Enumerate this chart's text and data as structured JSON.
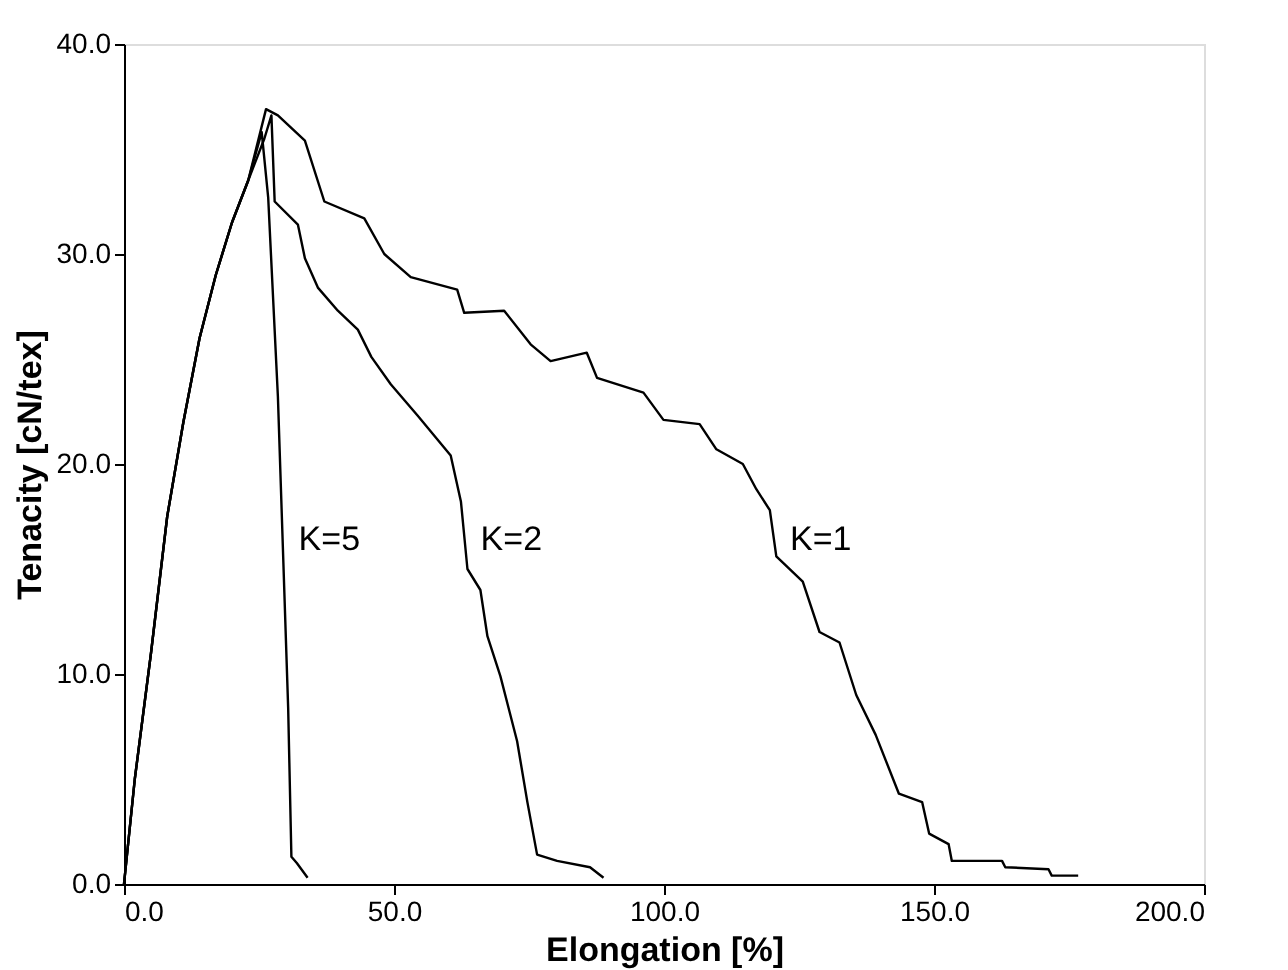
{
  "chart_data": {
    "type": "line",
    "xlabel": "Elongation [%]",
    "ylabel": "Tenacity [cN/tex]",
    "xlim": [
      0,
      200
    ],
    "xticks": [
      {
        "value": 0,
        "label": "0.0"
      },
      {
        "value": 50,
        "label": "50.0"
      },
      {
        "value": 100,
        "label": "100.0"
      },
      {
        "value": 150,
        "label": "150.0"
      },
      {
        "value": 200,
        "label": "200.0"
      }
    ],
    "ylim": [
      0,
      40
    ],
    "yticks": [
      {
        "value": 0,
        "label": "0.0"
      },
      {
        "value": 10,
        "label": "10.0"
      },
      {
        "value": 20,
        "label": "20.0"
      },
      {
        "value": 30,
        "label": "30.0"
      },
      {
        "value": 40,
        "label": "40.0"
      }
    ],
    "grid": false,
    "legend": false,
    "marker": "none",
    "line_style": "solid",
    "series": [
      {
        "name": "K=5",
        "color": "#000000",
        "x": [
          0,
          2,
          5,
          8,
          11,
          14,
          17,
          20,
          23,
          25.5,
          26.7,
          28.5,
          30.4,
          31,
          32,
          34
        ],
        "values": [
          0,
          5,
          11,
          17.5,
          22,
          26,
          29,
          31.5,
          33.5,
          35.8,
          32.7,
          23.2,
          8.4,
          1.3,
          1,
          0.3
        ]
      },
      {
        "name": "K=2",
        "color": "#000000",
        "x": [
          0,
          2,
          5,
          8,
          11,
          14,
          17,
          20,
          23,
          26,
          27.3,
          27.9,
          32.2,
          33.5,
          35.9,
          39.6,
          43.3,
          45.8,
          49.4,
          54.4,
          60.5,
          62.4,
          63.6,
          66,
          67.3,
          69.7,
          72.8,
          74.7,
          76.5,
          80.2,
          86.3,
          88.8
        ],
        "values": [
          0,
          5,
          11,
          17.5,
          22,
          26,
          29,
          31.5,
          33.5,
          35.5,
          36.6,
          32.5,
          31.4,
          29.8,
          28.4,
          27.3,
          26.4,
          25.1,
          23.8,
          22.3,
          20.4,
          18.2,
          15,
          14,
          11.8,
          9.9,
          6.8,
          3.9,
          1.4,
          1.1,
          0.8,
          0.3
        ]
      },
      {
        "name": "K=1",
        "color": "#000000",
        "x": [
          0,
          2,
          5,
          8,
          11,
          14,
          17,
          20,
          23,
          26.3,
          28.5,
          33.5,
          37.1,
          44.5,
          48.2,
          53.1,
          61.7,
          63,
          70.4,
          75.3,
          79,
          85.7,
          87.6,
          96.2,
          99.9,
          106.6,
          109.7,
          114.6,
          117.1,
          119.6,
          120.8,
          125.7,
          128.8,
          132.5,
          135.6,
          139.2,
          143.5,
          147.8,
          149.1,
          152.7,
          153.3,
          162.6,
          163.2,
          171.2,
          171.8,
          176.7
        ],
        "values": [
          0,
          5,
          11,
          17.5,
          22,
          26,
          29,
          31.5,
          33.5,
          36.9,
          36.6,
          35.4,
          32.5,
          31.7,
          30,
          28.9,
          28.3,
          27.2,
          27.3,
          25.7,
          24.9,
          25.3,
          24.1,
          23.4,
          22.1,
          21.9,
          20.7,
          20,
          18.8,
          17.8,
          15.6,
          14.4,
          12,
          11.5,
          9,
          7.1,
          4.3,
          3.9,
          2.4,
          1.9,
          1.1,
          1.1,
          0.8,
          0.7,
          0.4,
          0.4
        ]
      }
    ]
  }
}
